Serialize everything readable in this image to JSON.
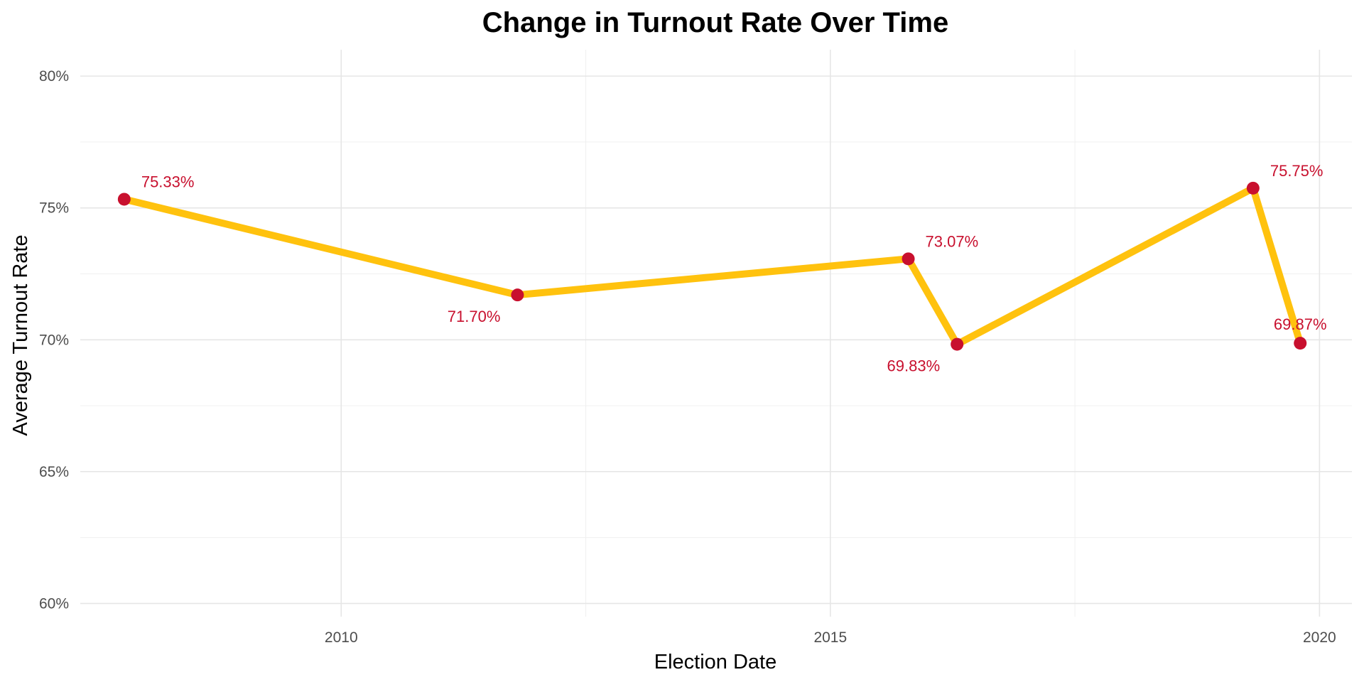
{
  "chart_data": {
    "type": "line",
    "title": "Change in Turnout Rate Over Time",
    "xlabel": "Election Date",
    "ylabel": "Average Turnout Rate",
    "x_scale": "date",
    "xlim": [
      "2007-05-03",
      "2020-05-01"
    ],
    "ylim": [
      59.5,
      81
    ],
    "x_ticks": [
      {
        "date": "2010-01-01",
        "label": "2010"
      },
      {
        "date": "2015-01-01",
        "label": "2015"
      },
      {
        "date": "2020-01-01",
        "label": "2020"
      }
    ],
    "y_ticks": [
      {
        "value": 60,
        "label": "60%"
      },
      {
        "value": 65,
        "label": "65%"
      },
      {
        "value": 70,
        "label": "70%"
      },
      {
        "value": 75,
        "label": "75%"
      },
      {
        "value": 80,
        "label": "80%"
      }
    ],
    "grid": true,
    "legend": "none",
    "series": [
      {
        "points": [
          {
            "x": "2007-10-14",
            "y": 75.33,
            "label": "75.33%"
          },
          {
            "x": "2011-10-21",
            "y": 71.7,
            "label": "71.70%"
          },
          {
            "x": "2015-10-19",
            "y": 73.07,
            "label": "73.07%"
          },
          {
            "x": "2016-04-18",
            "y": 69.83,
            "label": "69.83%"
          },
          {
            "x": "2019-04-28",
            "y": 75.75,
            "label": "75.75%"
          },
          {
            "x": "2019-10-21",
            "y": 69.87,
            "label": "69.87%"
          }
        ]
      }
    ],
    "colors": {
      "line": "#FFC20E",
      "point": "#C8102E",
      "label": "#C8102E",
      "grid_major": "#e6e6e6",
      "grid_minor": "#f0f0f0",
      "tick_text": "#4d4d4d"
    }
  }
}
